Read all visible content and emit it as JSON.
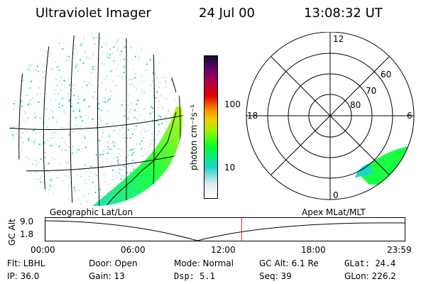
{
  "header": {
    "instrument": "Ultraviolet Imager",
    "date": "24 Jul 00",
    "time": "13:08:32 UT"
  },
  "colorbar": {
    "unit_label": "photon cm⁻²s⁻¹",
    "ticks": [
      "100",
      "10"
    ]
  },
  "polar": {
    "mlt_labels": [
      "12",
      "18",
      "6",
      "0"
    ],
    "mlat_labels": [
      "60",
      "70",
      "80"
    ]
  },
  "map_labels": {
    "left": "Geographic Lat/Lon",
    "right": "Apex MLat/MLT"
  },
  "altitude_plot": {
    "axis_title": "GC Alt",
    "y_ticks": [
      "9.0",
      "1.8"
    ],
    "x_ticks": [
      "00:00",
      "06:00",
      "12:00",
      "18:00",
      "23:59"
    ],
    "current_time_fraction": 0.547,
    "marker_color": "#e02020"
  },
  "info": {
    "row1": [
      "Flt: LBHL",
      "Door: Open",
      "Mode: Normal",
      "GC Alt: 6.1 Re",
      "GLat:  24.4"
    ],
    "row2": [
      "IP: 36.0",
      "Gain: 13",
      "Dsp:    5.1",
      "Seq: 39",
      "GLon: 226.2"
    ]
  },
  "colors": {
    "colorbar_stops": [
      "#ffffff",
      "#dfe8ec",
      "#18d6c8",
      "#00ff30",
      "#e8f000",
      "#ff9000",
      "#e00000",
      "#b0004a",
      "#6a006a",
      "#101030"
    ]
  }
}
